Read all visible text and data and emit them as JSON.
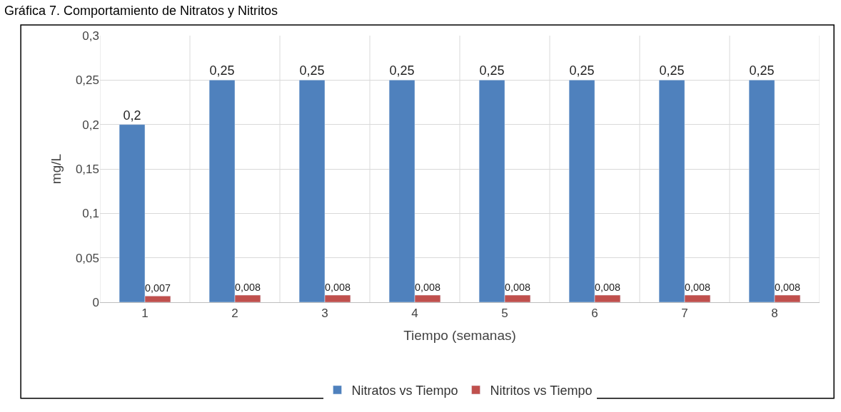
{
  "chart_data": {
    "type": "bar",
    "title": "Gráfica 7. Comportamiento de Nitratos y Nitritos",
    "xlabel": "Tiempo (semanas)",
    "ylabel": "mg/L",
    "categories": [
      "1",
      "2",
      "3",
      "4",
      "5",
      "6",
      "7",
      "8"
    ],
    "series": [
      {
        "name": "Nitratos vs Tiempo",
        "color": "#4f81bd",
        "values": [
          0.2,
          0.25,
          0.25,
          0.25,
          0.25,
          0.25,
          0.25,
          0.25
        ],
        "value_labels": [
          "0,2",
          "0,25",
          "0,25",
          "0,25",
          "0,25",
          "0,25",
          "0,25",
          "0,25"
        ]
      },
      {
        "name": "Nitritos vs Tiempo",
        "color": "#c0504d",
        "values": [
          0.007,
          0.008,
          0.008,
          0.008,
          0.008,
          0.008,
          0.008,
          0.008
        ],
        "value_labels": [
          "0,007",
          "0,008",
          "0,008",
          "0,008",
          "0,008",
          "0,008",
          "0,008",
          "0,008"
        ]
      }
    ],
    "ylim": [
      0,
      0.3
    ],
    "yticks": [
      0,
      {
        "value": 0.05,
        "label": "0,05"
      },
      {
        "value": 0.1,
        "label": "0,1"
      },
      {
        "value": 0.15,
        "label": "0,15"
      },
      {
        "value": 0.2,
        "label": "0,2"
      },
      {
        "value": 0.25,
        "label": "0,25"
      },
      {
        "value": 0.3,
        "label": "0,3"
      }
    ],
    "grid": true,
    "legend": "bottom"
  }
}
